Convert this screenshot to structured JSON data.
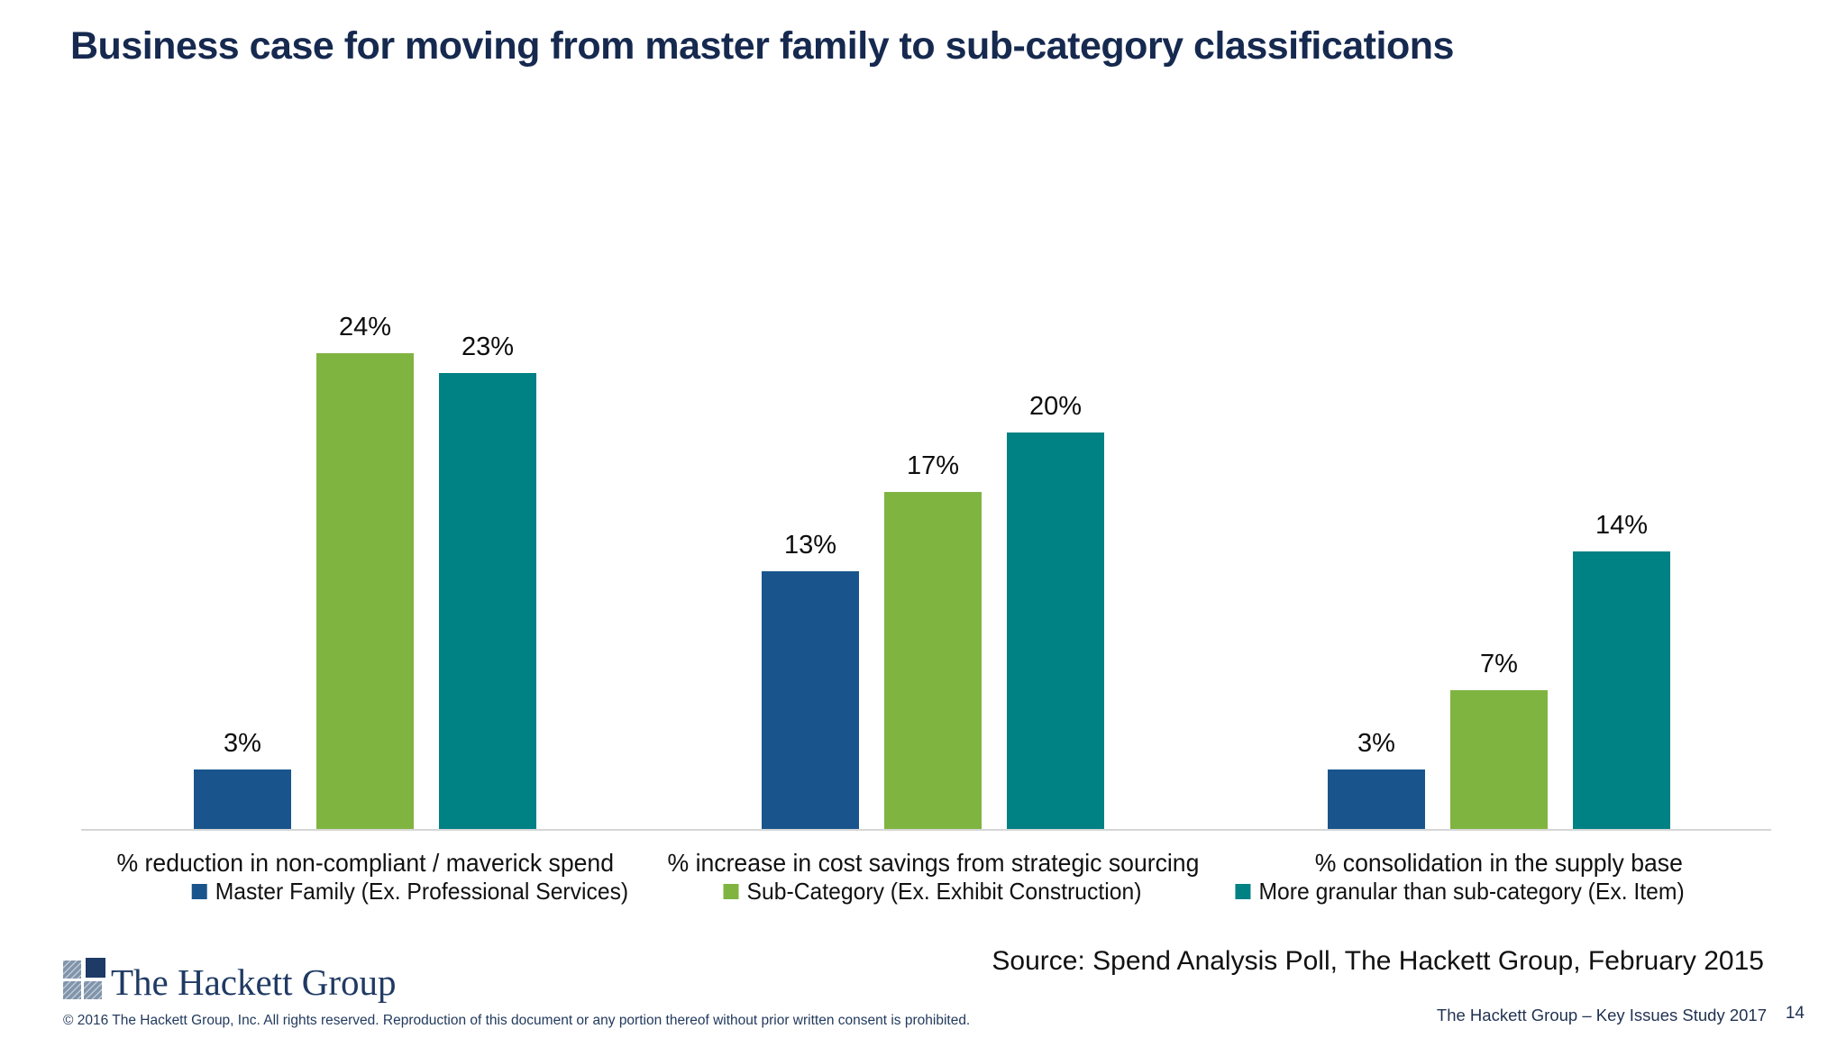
{
  "slide": {
    "title": "Business case for moving from master family to sub-category classifications",
    "source": "Source: Spend Analysis Poll, The Hackett Group, February 2015",
    "footer": {
      "logo_text": "The Hackett Group",
      "copyright": "© 2016 The Hackett Group, Inc. All rights reserved. Reproduction of this document or any portion thereof without prior written consent is prohibited.",
      "report_title": "The Hackett Group – Key Issues Study 2017",
      "page_number": "14"
    }
  },
  "chart_data": {
    "type": "bar",
    "title": "Business case for moving from master family to sub-category classifications",
    "categories": [
      "% reduction in non-compliant / maverick spend",
      "% increase in cost savings from strategic sourcing",
      "% consolidation in the supply base"
    ],
    "series": [
      {
        "name": "Master Family (Ex. Professional Services)",
        "color": "#19558C",
        "values": [
          3,
          13,
          3
        ]
      },
      {
        "name": "Sub-Category (Ex. Exhibit Construction)",
        "color": "#80B441",
        "values": [
          24,
          17,
          7
        ]
      },
      {
        "name": "More granular than sub-category (Ex. Item)",
        "color": "#008184",
        "values": [
          23,
          20,
          14
        ]
      }
    ],
    "value_label_format": "{v}%",
    "xlabel": "",
    "ylabel": "",
    "ylim": [
      0,
      25
    ],
    "grid": false,
    "legend_position": "below-each-category",
    "colors": {
      "title_navy": "#16294f",
      "baseline_gray": "#d6d6d6",
      "footer_navy": "#1f3152",
      "logo_navy": "#1e3a66",
      "logo_slate": "#8094ab"
    }
  }
}
